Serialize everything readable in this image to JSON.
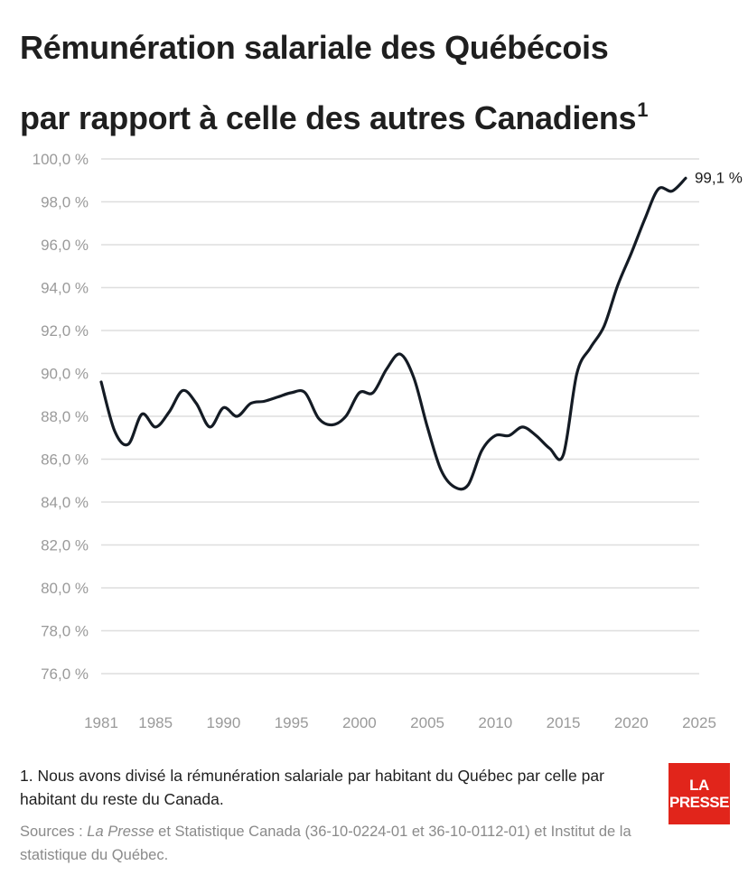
{
  "header": {
    "title_line1": "Rémunération salariale des Québécois",
    "title_line2": "par rapport à celle des autres Canadiens",
    "title_superscript": "1"
  },
  "chart_data": {
    "type": "line",
    "title": "Rémunération salariale des Québécois par rapport à celle des autres Canadiens",
    "xlabel": "",
    "ylabel": "",
    "xlim": [
      1981,
      2025
    ],
    "ylim": [
      76,
      100
    ],
    "grid": true,
    "x_ticks": [
      1981,
      1985,
      1990,
      1995,
      2000,
      2005,
      2010,
      2015,
      2020,
      2025
    ],
    "x_tick_labels": [
      "1981",
      "1985",
      "1990",
      "1995",
      "2000",
      "2005",
      "2010",
      "2015",
      "2020",
      "2025"
    ],
    "y_ticks": [
      76,
      78,
      80,
      82,
      84,
      86,
      88,
      90,
      92,
      94,
      96,
      98,
      100
    ],
    "y_tick_labels": [
      "76,0 %",
      "78,0 %",
      "80,0 %",
      "82,0 %",
      "84,0 %",
      "86,0 %",
      "88,0 %",
      "90,0 %",
      "92,0 %",
      "94,0 %",
      "96,0 %",
      "98,0 %",
      "100,0 %"
    ],
    "series": [
      {
        "color": "#141b24",
        "x": [
          1981,
          1982,
          1983,
          1984,
          1985,
          1986,
          1987,
          1988,
          1989,
          1990,
          1991,
          1992,
          1993,
          1994,
          1995,
          1996,
          1997,
          1998,
          1999,
          2000,
          2001,
          2002,
          2003,
          2004,
          2005,
          2006,
          2007,
          2008,
          2009,
          2010,
          2011,
          2012,
          2013,
          2014,
          2015,
          2016,
          2017,
          2018,
          2019,
          2020,
          2021,
          2022,
          2023,
          2024
        ],
        "y": [
          89.6,
          87.3,
          86.7,
          88.1,
          87.5,
          88.2,
          89.2,
          88.6,
          87.5,
          88.4,
          88.0,
          88.6,
          88.7,
          88.9,
          89.1,
          89.1,
          87.9,
          87.6,
          88.0,
          89.1,
          89.1,
          90.2,
          90.9,
          89.8,
          87.5,
          85.5,
          84.7,
          84.8,
          86.4,
          87.1,
          87.1,
          87.5,
          87.1,
          86.5,
          86.2,
          90.0,
          91.2,
          92.2,
          94.1,
          95.6,
          97.2,
          98.6,
          98.5,
          99.1
        ]
      }
    ],
    "annotations": [
      {
        "text": "99,1 %",
        "x": 2024,
        "y": 99.1
      }
    ]
  },
  "footnote": {
    "text": "1. Nous avons divisé la rémunération salariale par habitant du Québec par celle par habitant du reste du Canada."
  },
  "sources": {
    "prefix": "Sources : ",
    "publication": "La Presse",
    "rest": " et Statistique Canada (36-10-0224-01 et 36-10-0112-01) et Institut de la statistique du Québec."
  },
  "logo": {
    "line1": "LA",
    "line2": "PRESSE",
    "color": "#e1251b"
  },
  "colors": {
    "line": "#141b24",
    "grid": "#dedede",
    "axis_label": "#9a9a9a"
  }
}
